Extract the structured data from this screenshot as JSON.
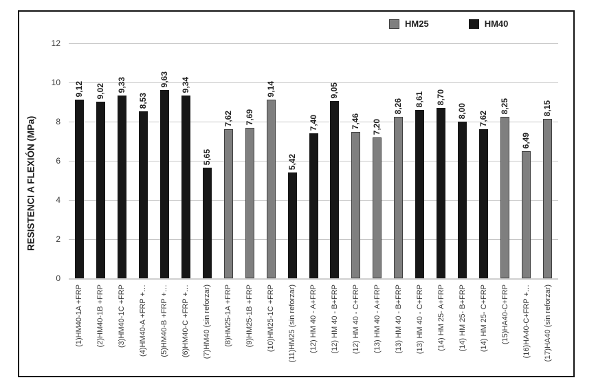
{
  "chart_data": {
    "type": "bar",
    "title": "",
    "xlabel": "",
    "ylabel": "RESISTENCI A FLEXIÓN (MPa)",
    "ylim": [
      0,
      12
    ],
    "yticks": [
      0,
      2,
      4,
      6,
      8,
      10,
      12
    ],
    "grid": true,
    "decimal_separator": ",",
    "legend": {
      "position": "top-right",
      "entries": [
        {
          "name": "HM25",
          "color": "#7f7f7f",
          "border": "#3f3f3f"
        },
        {
          "name": "HM40",
          "color": "#171717",
          "border": "#171717"
        }
      ]
    },
    "bars": [
      {
        "label": "(1)HM40-1A +FRP",
        "value": 9.12,
        "display": "9,12",
        "series": "HM40"
      },
      {
        "label": "(2)HM40-1B +FRP",
        "value": 9.02,
        "display": "9,02",
        "series": "HM40"
      },
      {
        "label": "(3)HM40-1C +FRP",
        "value": 9.33,
        "display": "9,33",
        "series": "HM40"
      },
      {
        "label": "(4)HM40-A +FRP +…",
        "value": 8.53,
        "display": "8,53",
        "series": "HM40"
      },
      {
        "label": "(5)HM40-B +FRP +…",
        "value": 9.63,
        "display": "9,63",
        "series": "HM40"
      },
      {
        "label": "(6)HM40-C +FRP +…",
        "value": 9.34,
        "display": "9,34",
        "series": "HM40"
      },
      {
        "label": "(7)HM40 (sin reforzar)",
        "value": 5.65,
        "display": "5,65",
        "series": "HM40"
      },
      {
        "label": "(8)HM25-1A +FRP",
        "value": 7.62,
        "display": "7,62",
        "series": "HM25"
      },
      {
        "label": "(9)HM25-1B +FRP",
        "value": 7.69,
        "display": "7,69",
        "series": "HM25"
      },
      {
        "label": "(10)HM25-1C +FRP",
        "value": 9.14,
        "display": "9,14",
        "series": "HM25"
      },
      {
        "label": "(11)HM25 (sin reforzar)",
        "value": 5.42,
        "display": "5,42",
        "series": "HM40"
      },
      {
        "label": "(12) HM 40 - A+FRP",
        "value": 7.4,
        "display": "7,40",
        "series": "HM40"
      },
      {
        "label": "(12) HM 40 - B+FRP",
        "value": 9.05,
        "display": "9,05",
        "series": "HM40"
      },
      {
        "label": "(12) HM 40 - C+FRP",
        "value": 7.46,
        "display": "7,46",
        "series": "HM25"
      },
      {
        "label": "(13) HM 40 - A+FRP",
        "value": 7.2,
        "display": "7,20",
        "series": "HM25"
      },
      {
        "label": "(13) HM 40 - B+FRP",
        "value": 8.26,
        "display": "8,26",
        "series": "HM25"
      },
      {
        "label": "(13) HM 40 - C+FRP",
        "value": 8.61,
        "display": "8,61",
        "series": "HM40"
      },
      {
        "label": "(14) HM 25- A+FRP",
        "value": 8.7,
        "display": "8,70",
        "series": "HM40"
      },
      {
        "label": "(14) HM 25- B+FRP",
        "value": 8.0,
        "display": "8,00",
        "series": "HM40"
      },
      {
        "label": "(14) HM 25- C+FRP",
        "value": 7.62,
        "display": "7,62",
        "series": "HM40"
      },
      {
        "label": "(15)HA40-C+FRP",
        "value": 8.25,
        "display": "8,25",
        "series": "HM25"
      },
      {
        "label": "(16)HA40-C+FRP +…",
        "value": 6.49,
        "display": "6,49",
        "series": "HM25"
      },
      {
        "label": "(17)HA40 (sin reforzar)",
        "value": 8.15,
        "display": "8,15",
        "series": "HM25"
      }
    ]
  }
}
